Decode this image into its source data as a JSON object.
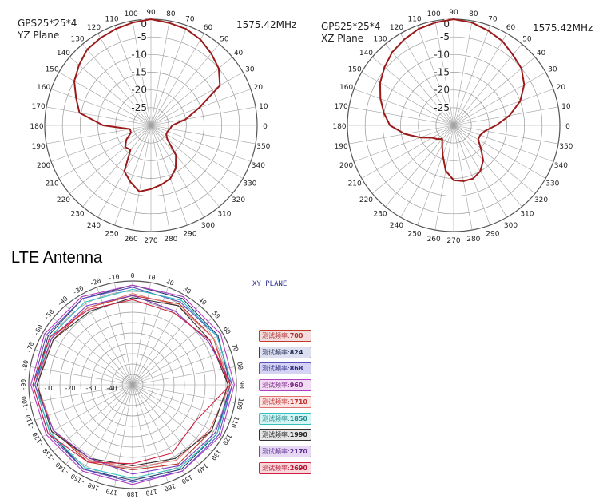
{
  "chart_data": [
    {
      "type": "polar-line",
      "title_lines": [
        "GPS25*25*4",
        "YZ Plane"
      ],
      "frequency": "1575.42MHz",
      "angle_ticks": [
        0,
        10,
        20,
        30,
        40,
        50,
        60,
        70,
        80,
        90,
        100,
        110,
        120,
        130,
        140,
        150,
        160,
        170,
        180,
        190,
        200,
        210,
        220,
        230,
        240,
        250,
        260,
        270,
        280,
        290,
        300,
        310,
        320,
        330,
        340,
        350
      ],
      "radial_ticks": [
        0,
        -5,
        -10,
        -15,
        -20,
        -25
      ],
      "rlim": [
        -30,
        0
      ],
      "color": "#9b1a1a",
      "series": [
        {
          "points": [
            [
              0,
              -24
            ],
            [
              10,
              -20
            ],
            [
              20,
              -15.5
            ],
            [
              30,
              -7.5
            ],
            [
              40,
              -5
            ],
            [
              50,
              -3.5
            ],
            [
              60,
              -2
            ],
            [
              70,
              -1
            ],
            [
              80,
              -0.6
            ],
            [
              90,
              0
            ],
            [
              100,
              -0.5
            ],
            [
              110,
              -1
            ],
            [
              120,
              -1.5
            ],
            [
              130,
              -2
            ],
            [
              140,
              -3.5
            ],
            [
              150,
              -5
            ],
            [
              160,
              -7.5
            ],
            [
              170,
              -9.5
            ],
            [
              180,
              -16.5
            ],
            [
              190,
              -24
            ],
            [
              200,
              -24
            ],
            [
              210,
              -22
            ],
            [
              220,
              -20.5
            ],
            [
              230,
              -21
            ],
            [
              240,
              -15
            ],
            [
              250,
              -13
            ],
            [
              260,
              -11
            ],
            [
              270,
              -12
            ],
            [
              280,
              -13
            ],
            [
              290,
              -14
            ],
            [
              300,
              -16
            ],
            [
              310,
              -19
            ],
            [
              320,
              -24
            ],
            [
              330,
              -25
            ],
            [
              340,
              -25
            ],
            [
              350,
              -24.5
            ]
          ]
        }
      ]
    },
    {
      "type": "polar-line",
      "title_lines": [
        "GPS25*25*4",
        "XZ Plane"
      ],
      "frequency": "1575.42MHz",
      "angle_ticks": [
        0,
        10,
        20,
        30,
        40,
        50,
        60,
        70,
        80,
        90,
        100,
        110,
        120,
        130,
        140,
        150,
        160,
        170,
        180,
        190,
        200,
        210,
        220,
        230,
        240,
        250,
        260,
        270,
        280,
        290,
        300,
        310,
        320,
        330,
        340,
        350
      ],
      "radial_ticks": [
        0,
        -5,
        -10,
        -15,
        -20,
        -25
      ],
      "rlim": [
        -30,
        0
      ],
      "color": "#9b1a1a",
      "series": [
        {
          "points": [
            [
              0,
              -18
            ],
            [
              10,
              -14
            ],
            [
              20,
              -10
            ],
            [
              30,
              -7
            ],
            [
              40,
              -5
            ],
            [
              50,
              -4
            ],
            [
              60,
              -2.5
            ],
            [
              70,
              -1.5
            ],
            [
              80,
              -0.5
            ],
            [
              90,
              0
            ],
            [
              100,
              -0.5
            ],
            [
              110,
              -1
            ],
            [
              120,
              -2
            ],
            [
              130,
              -3
            ],
            [
              140,
              -4.5
            ],
            [
              150,
              -6
            ],
            [
              160,
              -8
            ],
            [
              170,
              -10
            ],
            [
              180,
              -12
            ],
            [
              190,
              -16
            ],
            [
              200,
              -20
            ],
            [
              210,
              -23
            ],
            [
              220,
              -24
            ],
            [
              230,
              -25
            ],
            [
              240,
              -23.5
            ],
            [
              250,
              -21
            ],
            [
              260,
              -17
            ],
            [
              270,
              -14.5
            ],
            [
              280,
              -14
            ],
            [
              290,
              -14
            ],
            [
              300,
              -15
            ],
            [
              310,
              -17
            ],
            [
              320,
              -20
            ],
            [
              330,
              -22
            ],
            [
              340,
              -22
            ],
            [
              350,
              -21
            ]
          ]
        }
      ]
    },
    {
      "type": "polar-line",
      "section_title": "LTE Antenna",
      "plane_label": "XY PLANE",
      "angle_ticks": [
        0,
        10,
        20,
        30,
        40,
        50,
        60,
        70,
        80,
        90,
        100,
        110,
        120,
        130,
        140,
        150,
        160,
        170,
        180,
        -170,
        -160,
        -150,
        -140,
        -130,
        -120,
        -110,
        -100,
        -90,
        -80,
        -70,
        -60,
        -50,
        -40,
        -30,
        -20,
        -10
      ],
      "radial_ticks": [
        -10,
        -20,
        -30,
        -40
      ],
      "rlim": [
        -50,
        0
      ],
      "legend_prefix": "测试频率:",
      "series": [
        {
          "name": "700",
          "color": "#c0392b",
          "legend_bg": "#f3dede",
          "legend_text": "#b03030",
          "points": [
            [
              -180,
              -9
            ],
            [
              -150,
              -7
            ],
            [
              -120,
              -6
            ],
            [
              -90,
              -4
            ],
            [
              -60,
              -6
            ],
            [
              -30,
              -7
            ],
            [
              0,
              -7
            ],
            [
              30,
              -5
            ],
            [
              60,
              -5
            ],
            [
              90,
              -4
            ],
            [
              120,
              -6
            ],
            [
              150,
              -6
            ],
            [
              180,
              -9
            ]
          ]
        },
        {
          "name": "824",
          "color": "#2c3e70",
          "legend_bg": "#dcdff0",
          "legend_text": "#202850",
          "points": [
            [
              -180,
              -4
            ],
            [
              -150,
              -3
            ],
            [
              -120,
              -4
            ],
            [
              -90,
              -3
            ],
            [
              -60,
              -3
            ],
            [
              -30,
              -2
            ],
            [
              0,
              -2
            ],
            [
              30,
              -2
            ],
            [
              60,
              -2.5
            ],
            [
              90,
              -3
            ],
            [
              120,
              -3
            ],
            [
              150,
              -3
            ],
            [
              180,
              -4
            ]
          ]
        },
        {
          "name": "868",
          "color": "#5a4fc0",
          "legend_bg": "#d5d3f3",
          "legend_text": "#2d2a80",
          "points": [
            [
              -180,
              -3
            ],
            [
              -150,
              -3
            ],
            [
              -120,
              -3
            ],
            [
              -90,
              -2
            ],
            [
              -60,
              -2
            ],
            [
              -30,
              -2
            ],
            [
              0,
              -3
            ],
            [
              30,
              -4
            ],
            [
              60,
              -3
            ],
            [
              90,
              -2
            ],
            [
              120,
              -2
            ],
            [
              150,
              -2
            ],
            [
              180,
              -3
            ]
          ]
        },
        {
          "name": "960",
          "color": "#b040c0",
          "legend_bg": "#f2dcf3",
          "legend_text": "#7a2486",
          "points": [
            [
              -180,
              -2
            ],
            [
              -150,
              -2
            ],
            [
              -120,
              -2
            ],
            [
              -90,
              -1
            ],
            [
              -60,
              -1
            ],
            [
              -30,
              -1
            ],
            [
              0,
              -2
            ],
            [
              30,
              -1
            ],
            [
              60,
              -1
            ],
            [
              90,
              -1
            ],
            [
              120,
              -1
            ],
            [
              150,
              -2
            ],
            [
              180,
              -2
            ]
          ]
        },
        {
          "name": "1710",
          "color": "#e07070",
          "legend_bg": "#fbe4e4",
          "legend_text": "#c03030",
          "points": [
            [
              -180,
              -10
            ],
            [
              -150,
              -8
            ],
            [
              -120,
              -6
            ],
            [
              -90,
              -4
            ],
            [
              -60,
              -5
            ],
            [
              -30,
              -7
            ],
            [
              0,
              -6
            ],
            [
              30,
              -6
            ],
            [
              60,
              -5
            ],
            [
              90,
              -3
            ],
            [
              120,
              -7
            ],
            [
              150,
              -8
            ],
            [
              180,
              -10
            ]
          ]
        },
        {
          "name": "1850",
          "color": "#30c0c0",
          "legend_bg": "#d8f5f5",
          "legend_text": "#208a8a",
          "points": [
            [
              -180,
              -5
            ],
            [
              -150,
              -4
            ],
            [
              -120,
              -4
            ],
            [
              -90,
              -3
            ],
            [
              -60,
              -4
            ],
            [
              -30,
              -4
            ],
            [
              0,
              -4
            ],
            [
              30,
              -3
            ],
            [
              60,
              -3
            ],
            [
              90,
              -2
            ],
            [
              120,
              -3
            ],
            [
              150,
              -4
            ],
            [
              180,
              -5
            ]
          ]
        },
        {
          "name": "1990",
          "color": "#333333",
          "legend_bg": "#e6e6e6",
          "legend_text": "#222222",
          "points": [
            [
              -180,
              -11
            ],
            [
              -150,
              -9
            ],
            [
              -120,
              -5
            ],
            [
              -90,
              -4
            ],
            [
              -60,
              -6
            ],
            [
              -30,
              -9
            ],
            [
              0,
              -8
            ],
            [
              30,
              -6
            ],
            [
              60,
              -7
            ],
            [
              90,
              -4
            ],
            [
              120,
              -6
            ],
            [
              150,
              -9
            ],
            [
              180,
              -11
            ]
          ]
        },
        {
          "name": "2170",
          "color": "#8040c0",
          "legend_bg": "#e6d8f3",
          "legend_text": "#5a2a90",
          "points": [
            [
              -180,
              -7
            ],
            [
              -150,
              -9
            ],
            [
              -120,
              -6
            ],
            [
              -90,
              -3
            ],
            [
              -60,
              -5
            ],
            [
              -30,
              -6
            ],
            [
              0,
              -7
            ],
            [
              30,
              -9
            ],
            [
              60,
              -8
            ],
            [
              90,
              -2
            ],
            [
              120,
              -4
            ],
            [
              150,
              -5
            ],
            [
              180,
              -7
            ]
          ]
        },
        {
          "name": "2690",
          "color": "#d02040",
          "legend_bg": "#f8d8dc",
          "legend_text": "#b01030",
          "points": [
            [
              -180,
              -12
            ],
            [
              -150,
              -7
            ],
            [
              -120,
              -3
            ],
            [
              -90,
              -2
            ],
            [
              -60,
              -4
            ],
            [
              -30,
              -8
            ],
            [
              0,
              -9
            ],
            [
              30,
              -10
            ],
            [
              60,
              -7
            ],
            [
              90,
              -3
            ],
            [
              120,
              -15
            ],
            [
              150,
              -12
            ],
            [
              180,
              -12
            ]
          ]
        }
      ]
    }
  ]
}
